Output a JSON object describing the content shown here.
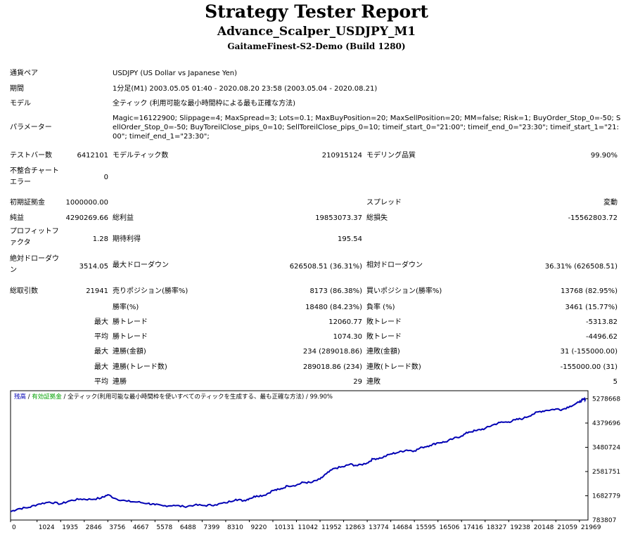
{
  "header": {
    "title": "Strategy Tester Report",
    "subtitle": "Advance_Scalper_USDJPY_M1",
    "server": "GaitameFinest-S2-Demo (Build 1280)"
  },
  "info": {
    "symbol_label": "通貨ペア",
    "symbol_value": "USDJPY (US Dollar vs Japanese Yen)",
    "period_label": "期間",
    "period_value": "1分足(M1) 2003.05.05 01:40 - 2020.08.20 23:58 (2003.05.04 - 2020.08.21)",
    "model_label": "モデル",
    "model_value": "全ティック (利用可能な最小時間枠による最も正確な方法)",
    "params_label": "パラメーター",
    "params_value": "Magic=16122900; Slippage=4; MaxSpread=3; Lots=0.1; MaxBuyPosition=20; MaxSellPosition=20; MM=false; Risk=1; BuyOrder_Stop_0=-50; SellOrder_Stop_0=-50; BuyToreilClose_pips_0=10; SellToreilClose_pips_0=10; timeif_start_0=\"21:00\"; timeif_end_0=\"23:30\"; timeif_start_1=\"21:00\"; timeif_end_1=\"23:30\";"
  },
  "stats": {
    "bars_label": "テストバー数",
    "bars_value": "6412101",
    "ticks_label": "モデルティック数",
    "ticks_value": "210915124",
    "quality_label": "モデリング品質",
    "quality_value": "99.90%",
    "mismatch_label": "不整合チャートエラー",
    "mismatch_value": "0",
    "deposit_label": "初期証拠金",
    "deposit_value": "1000000.00",
    "spread_label": "スプレッド",
    "spread_value": "変動",
    "net_label": "純益",
    "net_value": "4290269.66",
    "gross_profit_label": "総利益",
    "gross_profit_value": "19853073.37",
    "gross_loss_label": "総損失",
    "gross_loss_value": "-15562803.72",
    "pf_label": "プロフィットファクタ",
    "pf_value": "1.28",
    "payoff_label": "期待利得",
    "payoff_value": "195.54",
    "abs_dd_label": "絶対ドローダウン",
    "abs_dd_value": "3514.05",
    "max_dd_label": "最大ドローダウン",
    "max_dd_value": "626508.51 (36.31%)",
    "rel_dd_label": "相対ドローダウン",
    "rel_dd_value": "36.31% (626508.51)",
    "trades_label": "総取引数",
    "trades_value": "21941",
    "short_label": "売りポジション(勝率%)",
    "short_value": "8173 (86.38%)",
    "long_label": "買いポジション(勝率%)",
    "long_value": "13768 (82.95%)",
    "win_label": "勝率(%)",
    "win_value": "18480 (84.23%)",
    "loss_label": "負率 (%)",
    "loss_value": "3461 (15.77%)",
    "max_prefix": "最大",
    "avg_prefix": "平均",
    "largest_win_label": "勝トレード",
    "largest_win_value": "12060.77",
    "largest_loss_label": "敗トレード",
    "largest_loss_value": "-5313.82",
    "avg_win_label": "勝トレード",
    "avg_win_value": "1074.30",
    "avg_loss_label": "敗トレード",
    "avg_loss_value": "-4496.62",
    "consec_wins_money_label": "連勝(金額)",
    "consec_wins_money_value": "234 (289018.86)",
    "consec_losses_money_label": "連敗(金額)",
    "consec_losses_money_value": "31 (-155000.00)",
    "consec_wins_count_label": "連勝(トレード数)",
    "consec_wins_count_value": "289018.86 (234)",
    "consec_losses_count_label": "連敗(トレード数)",
    "consec_losses_count_value": "-155000.00 (31)",
    "avg_consec_wins_label": "連勝",
    "avg_consec_wins_value": "29",
    "avg_consec_losses_label": "連敗",
    "avg_consec_losses_value": "5"
  },
  "chart_data": {
    "type": "line",
    "legend_balance": "残高",
    "legend_sep1": " / ",
    "legend_equity": "有効証拠金",
    "legend_sep2": " / ",
    "legend_model": "全ティック(利用可能な最小時間枠を使いすべてのティックを生成する、最も正確な方法)",
    "legend_sep3": " / ",
    "legend_quality": "99.90%",
    "colors": {
      "balance": "#0000b4",
      "equity": "#00a000",
      "grid": "#c8c8c8",
      "frame": "#000000"
    },
    "x_ticks": [
      0,
      1024,
      1935,
      2846,
      3756,
      4667,
      5578,
      6488,
      7399,
      8310,
      9220,
      10131,
      11042,
      11952,
      12863,
      13774,
      14684,
      15595,
      16506,
      17416,
      18327,
      19238,
      20148,
      21059,
      21969
    ],
    "y_ticks": [
      "5278668",
      "4379696",
      "3480724",
      "2581751",
      "1682779",
      "783807"
    ],
    "ylim": [
      783807,
      5578000
    ],
    "xlim": [
      0,
      22300
    ],
    "series": [
      {
        "name": "残高",
        "x": [
          0,
          300,
          700,
          1100,
          1500,
          1935,
          2300,
          2700,
          3100,
          3500,
          3756,
          4100,
          4500,
          4900,
          5300,
          5578,
          5900,
          6300,
          6700,
          7100,
          7500,
          7900,
          8310,
          8700,
          9000,
          9220,
          9500,
          9800,
          10131,
          10400,
          10700,
          11042,
          11300,
          11600,
          11952,
          12200,
          12500,
          12863,
          13100,
          13400,
          13774,
          14000,
          14300,
          14684,
          15000,
          15300,
          15595,
          15900,
          16200,
          16506,
          16800,
          17100,
          17416,
          17700,
          18000,
          18327,
          18600,
          18900,
          19238,
          19500,
          19800,
          20148,
          20400,
          20700,
          21059,
          21300,
          21600,
          21969,
          22100,
          22200
        ],
        "y": [
          1100000,
          1200000,
          1250000,
          1380000,
          1450000,
          1380000,
          1500000,
          1560000,
          1550000,
          1600000,
          1720000,
          1560000,
          1480000,
          1450000,
          1400000,
          1350000,
          1310000,
          1330000,
          1280000,
          1340000,
          1320000,
          1350000,
          1420000,
          1550000,
          1500000,
          1580000,
          1680000,
          1700000,
          1880000,
          1920000,
          2050000,
          2080000,
          2180000,
          2170000,
          2300000,
          2500000,
          2700000,
          2760000,
          2850000,
          2800000,
          2900000,
          3050000,
          3080000,
          3230000,
          3300000,
          3380000,
          3350000,
          3480000,
          3550000,
          3650000,
          3680000,
          3800000,
          3900000,
          4050000,
          4100000,
          4180000,
          4300000,
          4400000,
          4420000,
          4500000,
          4550000,
          4700000,
          4800000,
          4850000,
          4900000,
          4880000,
          5000000,
          5150000,
          5250000,
          5260000
        ]
      }
    ]
  }
}
